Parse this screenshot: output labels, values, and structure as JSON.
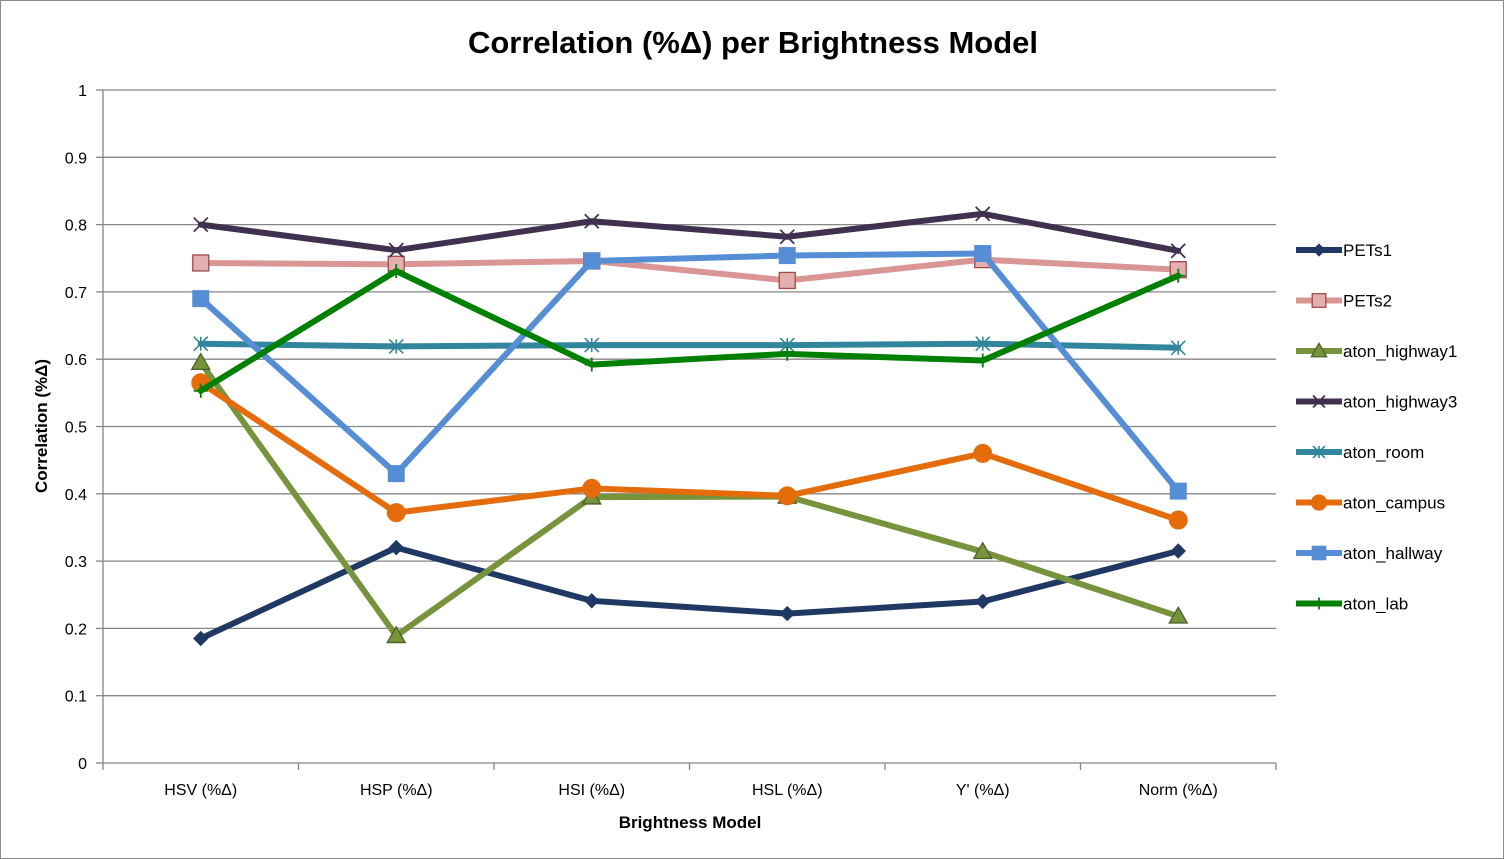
{
  "chart_data": {
    "type": "line",
    "title": "Correlation (%Δ) per Brightness Model",
    "xlabel": "Brightness Model",
    "ylabel": "Correlation (%Δ)",
    "ylim": [
      0,
      1
    ],
    "yticks": [
      "0",
      "0.1",
      "0.2",
      "0.3",
      "0.4",
      "0.5",
      "0.6",
      "0.7",
      "0.8",
      "0.9",
      "1"
    ],
    "grid": true,
    "legend_position": "right",
    "categories": [
      "HSV (%Δ)",
      "HSP (%Δ)",
      "HSI (%Δ)",
      "HSL (%Δ)",
      "Y' (%Δ)",
      "Norm (%Δ)"
    ],
    "series": [
      {
        "name": "PETs1",
        "color": "#1f3864",
        "marker": "diamond",
        "values": [
          0.185,
          0.32,
          0.241,
          0.222,
          0.24,
          0.315
        ]
      },
      {
        "name": "PETs2",
        "color": "#d99694",
        "marker": "square",
        "values": [
          0.743,
          0.741,
          0.746,
          0.717,
          0.748,
          0.733
        ]
      },
      {
        "name": "aton_highway1",
        "color": "#77933c",
        "marker": "triangle",
        "values": [
          0.595,
          0.189,
          0.395,
          0.396,
          0.314,
          0.218
        ]
      },
      {
        "name": "aton_highway3",
        "color": "#403151",
        "marker": "x",
        "values": [
          0.8,
          0.762,
          0.805,
          0.782,
          0.816,
          0.761
        ]
      },
      {
        "name": "aton_room",
        "color": "#31859c",
        "marker": "star",
        "values": [
          0.623,
          0.619,
          0.621,
          0.621,
          0.623,
          0.617
        ]
      },
      {
        "name": "aton_campus",
        "color": "#e46c0a",
        "marker": "circle",
        "values": [
          0.565,
          0.372,
          0.408,
          0.397,
          0.46,
          0.361
        ]
      },
      {
        "name": "aton_hallway",
        "color": "#558ed5",
        "marker": "square",
        "values": [
          0.69,
          0.43,
          0.746,
          0.754,
          0.757,
          0.404
        ]
      },
      {
        "name": "aton_lab",
        "color": "#008000",
        "marker": "plus",
        "values": [
          0.553,
          0.731,
          0.592,
          0.608,
          0.598,
          0.724
        ]
      }
    ]
  }
}
